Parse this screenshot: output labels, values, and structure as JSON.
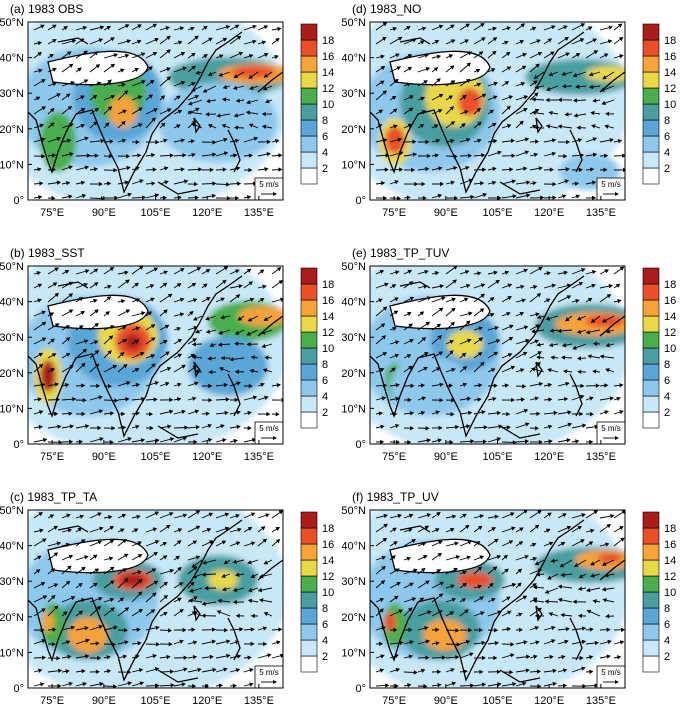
{
  "figure": {
    "panels": [
      {
        "id": "a",
        "title": "(a) 1983 OBS"
      },
      {
        "id": "d",
        "title": "(d) 1983_NO"
      },
      {
        "id": "b",
        "title": "(b) 1983_SST"
      },
      {
        "id": "e",
        "title": "(e) 1983_TP_TUV"
      },
      {
        "id": "c",
        "title": "(c) 1983_TP_TA"
      },
      {
        "id": "f",
        "title": "(f) 1983_TP_UV"
      }
    ],
    "vector_ref_label": "5 m/s"
  },
  "chart_data": {
    "type": "heatmap",
    "description_type": "filled contour map with wind vectors (6 panels)",
    "x_ticks": [
      "75°E",
      "90°E",
      "105°E",
      "120°E",
      "135°E"
    ],
    "x_values": [
      75,
      90,
      105,
      120,
      135
    ],
    "y_ticks": [
      "0°",
      "10°N",
      "20°N",
      "30°N",
      "40°N",
      "50°N"
    ],
    "y_values": [
      0,
      10,
      20,
      30,
      40,
      50
    ],
    "xlim": [
      68,
      142
    ],
    "ylim": [
      0,
      50
    ],
    "colorbar": {
      "levels": [
        2,
        4,
        6,
        8,
        10,
        12,
        14,
        16,
        18
      ],
      "labels": [
        "2",
        "4",
        "6",
        "8",
        "10",
        "12",
        "14",
        "16",
        "18"
      ],
      "colors": [
        "#ffffff",
        "#c8e8f8",
        "#8ec8ec",
        "#5aa6d6",
        "#4a9ea0",
        "#4aae4e",
        "#e8d84a",
        "#f4a23a",
        "#e8502a",
        "#a81c1c"
      ]
    },
    "grid": false
  },
  "colors": {
    "land_outline": "#000000",
    "vector": "#000000"
  }
}
